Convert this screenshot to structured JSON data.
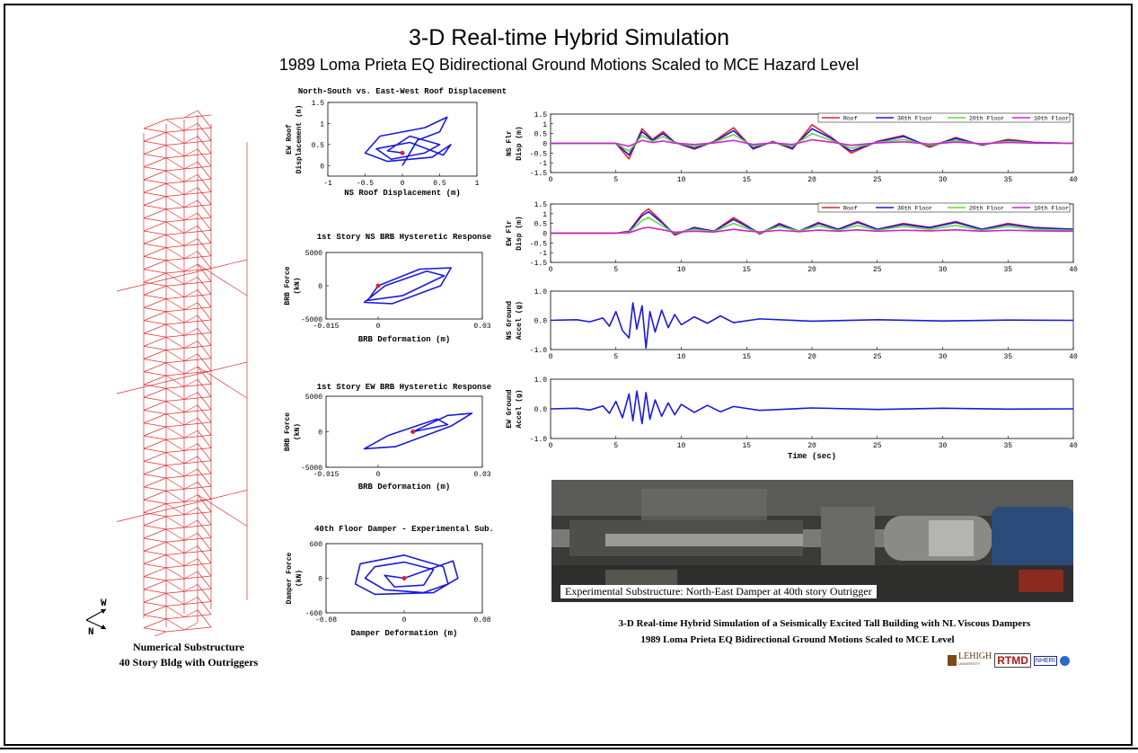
{
  "header": {
    "title": "3-D Real-time Hybrid Simulation",
    "subtitle": "1989 Loma Prieta EQ Bidirectional Ground Motions Scaled to MCE Hazard Level"
  },
  "left_caption": {
    "line1": "Numerical Substructure",
    "line2": "40 Story Bldg with Outriggers",
    "compass_w": "W",
    "compass_n": "N"
  },
  "photo": {
    "caption": "Experimental Substructure:  North-East Damper at 40th story Outrigger"
  },
  "footer": {
    "line1": "3-D Real-time Hybrid Simulation of a Seismically Excited Tall Building with NL Viscous Dampers",
    "line2": "1989 Loma Prieta EQ Bidirectional Ground Motions Scaled to MCE Level"
  },
  "logos": {
    "lehigh": "LEHIGH",
    "lehigh_sub": "UNIVERSITY",
    "rtmd": "RTMD",
    "nheri": "NHERI"
  },
  "colors": {
    "roof": "#e0202a",
    "floor30": "#1a1adc",
    "floor20": "#6ad43a",
    "floor10": "#d020d0",
    "trace": "#1a1adc",
    "marker": "#e0202a",
    "frame": "#e03030"
  },
  "chart_data": [
    {
      "id": "roof-orbit",
      "type": "scatter",
      "title": "North-South vs. East-West Roof Displacement",
      "xlabel": "NS Roof Displacement (m)",
      "ylabel": "EW Roof Displacement (m)",
      "xlim": [
        -1,
        1
      ],
      "ylim": [
        -0.25,
        1.5
      ],
      "xticks": [
        "-1",
        "-0.5",
        "0",
        "0.5",
        "1"
      ],
      "yticks": [
        "1.5",
        "1",
        "0.5",
        "0"
      ],
      "series": [
        {
          "x": [
            0,
            0.2,
            0.5,
            0.6,
            0.3,
            -0.3,
            -0.5,
            -0.2,
            0.4,
            0.65,
            0.55,
            0.1,
            -0.35,
            -0.15,
            0.3,
            0.5,
            0.1,
            -0.2,
            0.0
          ],
          "y": [
            0,
            0.6,
            0.8,
            1.15,
            0.9,
            0.7,
            0.3,
            0.1,
            0.2,
            0.5,
            0.25,
            0.55,
            0.4,
            0.15,
            0.3,
            0.5,
            0.7,
            0.35,
            0.3
          ]
        }
      ]
    },
    {
      "id": "ns-brb",
      "type": "line",
      "title": "1st Story NS BRB Hysteretic Response",
      "xlabel": "BRB Deformation (m)",
      "ylabel": "BRB Force (kN)",
      "xlim": [
        -0.015,
        0.03
      ],
      "ylim": [
        -5000,
        5000
      ],
      "xticks": [
        "-0.015",
        "0",
        "0.03"
      ],
      "yticks": [
        "5000",
        "0",
        "-5000"
      ],
      "series": [
        {
          "x": [
            0,
            0.012,
            0.021,
            0.018,
            0.004,
            -0.004,
            0.002,
            0.014,
            0.019,
            0.007,
            -0.003,
            0.0
          ],
          "y": [
            0,
            2500,
            2700,
            0,
            -2700,
            -2500,
            0,
            2200,
            1500,
            -1500,
            -2200,
            0
          ]
        }
      ]
    },
    {
      "id": "ew-brb",
      "type": "line",
      "title": "1st Story EW BRB Hysteretic Response",
      "xlabel": "BRB Deformation (m)",
      "ylabel": "BRB Force (kN)",
      "xlim": [
        -0.015,
        0.03
      ],
      "ylim": [
        -5000,
        5000
      ],
      "xticks": [
        "-0.015",
        "0",
        "0.03"
      ],
      "yticks": [
        "5000",
        "0",
        "-5000"
      ],
      "series": [
        {
          "x": [
            0.01,
            0.02,
            0.027,
            0.021,
            0.005,
            -0.004,
            0.003,
            0.017,
            0.02,
            0.01
          ],
          "y": [
            0,
            2300,
            2600,
            800,
            -2100,
            -2400,
            -500,
            1800,
            1000,
            0
          ]
        }
      ]
    },
    {
      "id": "damper",
      "type": "line",
      "title": "40th Floor Damper - Experimental Sub.",
      "xlabel": "Damper Deformation (m)",
      "ylabel": "Damper Force (kN)",
      "xlim": [
        -0.08,
        0.08
      ],
      "ylim": [
        -600,
        600
      ],
      "xticks": [
        "-0.08",
        "0",
        "0.08"
      ],
      "yticks": [
        "600",
        "0",
        "-600"
      ],
      "series": [
        {
          "x": [
            0.0,
            0.05,
            0.055,
            0.03,
            -0.03,
            -0.05,
            -0.045,
            0.0,
            0.04,
            0.045,
            0.02,
            -0.02,
            -0.04,
            -0.03,
            0.0,
            0.03,
            0.02,
            -0.01,
            -0.02,
            0.0
          ],
          "y": [
            0,
            300,
            0,
            -250,
            -280,
            -100,
            250,
            400,
            200,
            -100,
            -250,
            -200,
            0,
            200,
            280,
            150,
            -120,
            -150,
            50,
            0
          ]
        }
      ]
    },
    {
      "id": "ns-disp",
      "type": "line",
      "xlabel": "",
      "ylabel": "NS Flr Disp (m)",
      "xlim": [
        0,
        40
      ],
      "ylim": [
        -1.5,
        1.5
      ],
      "xticks": [
        "0",
        "5",
        "10",
        "15",
        "20",
        "25",
        "30",
        "35",
        "40"
      ],
      "yticks": [
        "1.5",
        "1",
        "0.5",
        "0",
        "-0.5",
        "-1",
        "-1.5"
      ],
      "legend": [
        "Roof",
        "30th Floor",
        "20th Floor",
        "10th Floor"
      ],
      "series": [
        {
          "name": "Roof",
          "x": [
            0,
            5,
            6,
            7,
            7.8,
            8.6,
            9.5,
            11,
            12.5,
            14,
            15.5,
            17,
            18.5,
            20,
            21.5,
            23,
            25,
            27,
            29,
            31,
            33,
            35,
            37,
            40
          ],
          "y": [
            0,
            0,
            -0.8,
            0.75,
            0.2,
            0.6,
            0.05,
            -0.3,
            0.1,
            0.8,
            -0.3,
            0.1,
            -0.3,
            0.95,
            0.3,
            -0.5,
            0.1,
            0.4,
            -0.2,
            0.3,
            -0.1,
            0.2,
            0.05,
            0.0
          ]
        },
        {
          "name": "30th Floor",
          "x": [
            0,
            5,
            6,
            7,
            7.8,
            8.6,
            9.5,
            11,
            12.5,
            14,
            15.5,
            17,
            18.5,
            20,
            21.5,
            23,
            25,
            27,
            29,
            31,
            33,
            35,
            37,
            40
          ],
          "y": [
            0,
            0,
            -0.6,
            0.6,
            0.15,
            0.5,
            0.05,
            -0.25,
            0.08,
            0.65,
            -0.25,
            0.08,
            -0.25,
            0.75,
            0.25,
            -0.4,
            0.08,
            0.35,
            -0.15,
            0.25,
            -0.08,
            0.15,
            0.04,
            0.0
          ]
        },
        {
          "name": "20th Floor",
          "x": [
            0,
            5,
            6,
            7,
            7.8,
            8.6,
            9.5,
            11,
            12.5,
            14,
            15.5,
            17,
            18.5,
            20,
            21.5,
            23,
            25,
            27,
            29,
            31,
            33,
            35,
            37,
            40
          ],
          "y": [
            0,
            0,
            -0.4,
            0.4,
            0.1,
            0.35,
            0.03,
            -0.15,
            0.05,
            0.45,
            -0.15,
            0.05,
            -0.15,
            0.5,
            0.15,
            -0.25,
            0.05,
            0.2,
            -0.1,
            0.15,
            -0.05,
            0.1,
            0.02,
            0.0
          ]
        },
        {
          "name": "10th Floor",
          "x": [
            0,
            5,
            6,
            7,
            7.8,
            8.6,
            9.5,
            11,
            12.5,
            14,
            15.5,
            17,
            18.5,
            20,
            21.5,
            23,
            25,
            27,
            29,
            31,
            33,
            35,
            37,
            40
          ],
          "y": [
            0,
            0,
            -0.15,
            0.15,
            0.04,
            0.12,
            0.01,
            -0.06,
            0.02,
            0.15,
            -0.06,
            0.02,
            -0.06,
            0.18,
            0.06,
            -0.1,
            0.02,
            0.08,
            -0.04,
            0.06,
            -0.02,
            0.04,
            0.01,
            0.0
          ]
        }
      ]
    },
    {
      "id": "ew-disp",
      "type": "line",
      "xlabel": "",
      "ylabel": "EW Flr Disp (m)",
      "xlim": [
        0,
        40
      ],
      "ylim": [
        -1.5,
        1.5
      ],
      "xticks": [
        "0",
        "5",
        "10",
        "15",
        "20",
        "25",
        "30",
        "35",
        "40"
      ],
      "yticks": [
        "1.5",
        "1",
        "0.5",
        "0",
        "-0.5",
        "-1",
        "-1.5"
      ],
      "legend": [
        "Roof",
        "30th Floor",
        "20th Floor",
        "10th Floor"
      ],
      "series": [
        {
          "name": "Roof",
          "x": [
            0,
            5,
            6,
            7,
            7.5,
            8.5,
            9.5,
            11,
            12.5,
            14,
            15,
            16,
            17.5,
            19,
            20.5,
            22,
            23.5,
            25,
            27,
            29,
            31,
            33,
            35,
            37,
            40
          ],
          "y": [
            0,
            0,
            0.1,
            1.0,
            1.25,
            0.6,
            -0.1,
            0.3,
            0.1,
            0.8,
            0.4,
            -0.05,
            0.5,
            0.1,
            0.55,
            0.2,
            0.6,
            0.2,
            0.5,
            0.3,
            0.6,
            0.2,
            0.5,
            0.3,
            0.2
          ]
        },
        {
          "name": "30th Floor",
          "x": [
            0,
            5,
            6,
            7,
            7.5,
            8.5,
            9.5,
            11,
            12.5,
            14,
            15,
            16,
            17.5,
            19,
            20.5,
            22,
            23.5,
            25,
            27,
            29,
            31,
            33,
            35,
            37,
            40
          ],
          "y": [
            0,
            0,
            0.08,
            0.9,
            1.1,
            0.55,
            -0.05,
            0.28,
            0.1,
            0.7,
            0.35,
            0.0,
            0.45,
            0.1,
            0.5,
            0.2,
            0.55,
            0.2,
            0.45,
            0.28,
            0.55,
            0.2,
            0.45,
            0.28,
            0.2
          ]
        },
        {
          "name": "20th Floor",
          "x": [
            0,
            5,
            6,
            7,
            7.5,
            8.5,
            9.5,
            11,
            12.5,
            14,
            15,
            16,
            17.5,
            19,
            20.5,
            22,
            23.5,
            25,
            27,
            29,
            31,
            33,
            35,
            37,
            40
          ],
          "y": [
            0,
            0,
            0.05,
            0.65,
            0.8,
            0.4,
            0.0,
            0.2,
            0.08,
            0.5,
            0.25,
            0.02,
            0.35,
            0.1,
            0.38,
            0.15,
            0.4,
            0.15,
            0.35,
            0.2,
            0.4,
            0.15,
            0.35,
            0.2,
            0.15
          ]
        },
        {
          "name": "10th Floor",
          "x": [
            0,
            5,
            6,
            7,
            7.5,
            8.5,
            9.5,
            11,
            12.5,
            14,
            15,
            16,
            17.5,
            19,
            20.5,
            22,
            23.5,
            25,
            27,
            29,
            31,
            33,
            35,
            37,
            40
          ],
          "y": [
            0,
            0,
            0.02,
            0.25,
            0.3,
            0.18,
            0.05,
            0.1,
            0.06,
            0.2,
            0.12,
            0.06,
            0.15,
            0.08,
            0.16,
            0.1,
            0.17,
            0.1,
            0.15,
            0.12,
            0.17,
            0.1,
            0.15,
            0.12,
            0.1
          ]
        }
      ]
    },
    {
      "id": "ns-accel",
      "type": "line",
      "xlabel": "",
      "ylabel": "NS Ground Accel (g)",
      "xlim": [
        0,
        40
      ],
      "ylim": [
        -1.0,
        1.0
      ],
      "xticks": [
        "0",
        "5",
        "10",
        "15",
        "20",
        "25",
        "30",
        "35",
        "40"
      ],
      "yticks": [
        "1.0",
        "0.0",
        "-1.0"
      ],
      "series": [
        {
          "name": "NS",
          "x": [
            0,
            2,
            3,
            4,
            4.5,
            5,
            5.5,
            6,
            6.3,
            6.6,
            7,
            7.3,
            7.6,
            8,
            8.5,
            9,
            9.5,
            10,
            11,
            12,
            13,
            14,
            16,
            20,
            25,
            30,
            35,
            40
          ],
          "y": [
            0,
            0.02,
            -0.05,
            0.08,
            -0.2,
            0.3,
            -0.35,
            -0.6,
            0.6,
            -0.3,
            0.5,
            -0.95,
            0.3,
            -0.4,
            0.35,
            -0.25,
            0.2,
            -0.15,
            0.12,
            -0.1,
            0.15,
            -0.08,
            0.05,
            -0.03,
            0.02,
            -0.02,
            0.01,
            0
          ]
        }
      ]
    },
    {
      "id": "ew-accel",
      "type": "line",
      "xlabel": "Time (sec)",
      "ylabel": "EW Ground Accel (g)",
      "xlim": [
        0,
        40
      ],
      "ylim": [
        -1.0,
        1.0
      ],
      "xticks": [
        "0",
        "5",
        "10",
        "15",
        "20",
        "25",
        "30",
        "35",
        "40"
      ],
      "yticks": [
        "1.0",
        "0.0",
        "-1.0"
      ],
      "series": [
        {
          "name": "EW",
          "x": [
            0,
            2,
            3,
            4,
            4.5,
            5,
            5.5,
            6,
            6.3,
            6.6,
            7,
            7.3,
            7.6,
            8,
            8.5,
            9,
            9.5,
            10,
            11,
            12,
            13,
            14,
            16,
            20,
            25,
            30,
            35,
            40
          ],
          "y": [
            0,
            0.02,
            -0.04,
            0.1,
            -0.15,
            0.25,
            -0.3,
            0.5,
            -0.4,
            0.6,
            -0.5,
            0.55,
            -0.35,
            0.3,
            -0.25,
            0.2,
            -0.2,
            0.15,
            -0.12,
            0.12,
            -0.1,
            0.08,
            -0.05,
            0.03,
            -0.02,
            0.02,
            -0.01,
            0
          ]
        }
      ]
    }
  ]
}
